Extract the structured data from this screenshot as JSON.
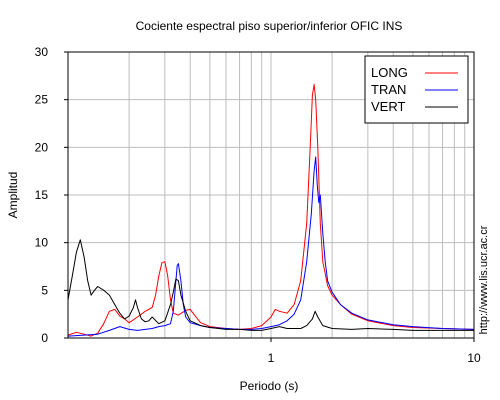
{
  "chart_data": {
    "type": "line",
    "title": "Cociente espectral piso superior/inferior  OFIC INS",
    "xlabel": "Periodo (s)",
    "ylabel": "Amplitud",
    "xscale": "log",
    "xlim": [
      0.1,
      10
    ],
    "ylim": [
      0,
      30
    ],
    "xticks": [
      {
        "value": 1,
        "label": "1"
      },
      {
        "value": 10,
        "label": "10"
      }
    ],
    "yticks": [
      0,
      5,
      10,
      15,
      20,
      25,
      30
    ],
    "grid": true,
    "legend": "top-right",
    "side_text": "http://www.lis.ucr.ac.cr",
    "series": [
      {
        "name": "LONG",
        "color": "#ff0000",
        "points": [
          [
            0.1,
            0.3
          ],
          [
            0.11,
            0.6
          ],
          [
            0.12,
            0.4
          ],
          [
            0.13,
            0.2
          ],
          [
            0.14,
            0.5
          ],
          [
            0.15,
            1.5
          ],
          [
            0.16,
            2.8
          ],
          [
            0.17,
            3.0
          ],
          [
            0.18,
            2.3
          ],
          [
            0.19,
            2.0
          ],
          [
            0.2,
            1.6
          ],
          [
            0.22,
            2.2
          ],
          [
            0.24,
            2.8
          ],
          [
            0.26,
            3.2
          ],
          [
            0.27,
            4.5
          ],
          [
            0.28,
            6.5
          ],
          [
            0.29,
            7.9
          ],
          [
            0.3,
            8.0
          ],
          [
            0.31,
            6.5
          ],
          [
            0.32,
            4.0
          ],
          [
            0.33,
            2.6
          ],
          [
            0.35,
            2.4
          ],
          [
            0.38,
            2.9
          ],
          [
            0.4,
            3.0
          ],
          [
            0.42,
            2.4
          ],
          [
            0.45,
            1.6
          ],
          [
            0.5,
            1.2
          ],
          [
            0.6,
            1.0
          ],
          [
            0.7,
            0.9
          ],
          [
            0.8,
            1.0
          ],
          [
            0.9,
            1.3
          ],
          [
            1.0,
            2.2
          ],
          [
            1.05,
            3.0
          ],
          [
            1.1,
            2.8
          ],
          [
            1.2,
            2.6
          ],
          [
            1.3,
            3.5
          ],
          [
            1.4,
            6.0
          ],
          [
            1.5,
            12.0
          ],
          [
            1.56,
            20.0
          ],
          [
            1.6,
            25.5
          ],
          [
            1.63,
            26.6
          ],
          [
            1.66,
            25.0
          ],
          [
            1.7,
            20.0
          ],
          [
            1.75,
            12.0
          ],
          [
            1.8,
            8.0
          ],
          [
            1.9,
            5.5
          ],
          [
            2.0,
            4.5
          ],
          [
            2.2,
            3.5
          ],
          [
            2.5,
            2.5
          ],
          [
            3.0,
            1.8
          ],
          [
            4.0,
            1.3
          ],
          [
            5.0,
            1.1
          ],
          [
            7.0,
            1.0
          ],
          [
            10.0,
            0.9
          ]
        ]
      },
      {
        "name": "TRAN",
        "color": "#0000ff",
        "points": [
          [
            0.1,
            0.2
          ],
          [
            0.12,
            0.3
          ],
          [
            0.14,
            0.4
          ],
          [
            0.16,
            0.8
          ],
          [
            0.18,
            1.2
          ],
          [
            0.2,
            0.9
          ],
          [
            0.22,
            0.8
          ],
          [
            0.24,
            0.9
          ],
          [
            0.26,
            1.0
          ],
          [
            0.28,
            1.2
          ],
          [
            0.3,
            1.3
          ],
          [
            0.32,
            1.5
          ],
          [
            0.33,
            2.8
          ],
          [
            0.34,
            6.0
          ],
          [
            0.345,
            7.6
          ],
          [
            0.35,
            7.8
          ],
          [
            0.36,
            6.0
          ],
          [
            0.37,
            3.5
          ],
          [
            0.38,
            2.2
          ],
          [
            0.4,
            1.6
          ],
          [
            0.45,
            1.3
          ],
          [
            0.5,
            1.1
          ],
          [
            0.6,
            1.0
          ],
          [
            0.7,
            0.9
          ],
          [
            0.8,
            0.9
          ],
          [
            0.9,
            1.0
          ],
          [
            1.0,
            1.2
          ],
          [
            1.1,
            1.4
          ],
          [
            1.2,
            1.8
          ],
          [
            1.3,
            2.5
          ],
          [
            1.4,
            4.0
          ],
          [
            1.5,
            8.0
          ],
          [
            1.58,
            13.0
          ],
          [
            1.63,
            17.5
          ],
          [
            1.66,
            19.0
          ],
          [
            1.69,
            16.0
          ],
          [
            1.72,
            14.2
          ],
          [
            1.75,
            15.0
          ],
          [
            1.8,
            11.0
          ],
          [
            1.85,
            8.0
          ],
          [
            1.9,
            6.0
          ],
          [
            2.0,
            4.8
          ],
          [
            2.2,
            3.5
          ],
          [
            2.5,
            2.6
          ],
          [
            3.0,
            1.9
          ],
          [
            4.0,
            1.4
          ],
          [
            5.0,
            1.2
          ],
          [
            7.0,
            1.0
          ],
          [
            10.0,
            0.9
          ]
        ]
      },
      {
        "name": "VERT",
        "color": "#000000",
        "points": [
          [
            0.1,
            4.0
          ],
          [
            0.105,
            6.5
          ],
          [
            0.11,
            9.0
          ],
          [
            0.115,
            10.3
          ],
          [
            0.12,
            8.5
          ],
          [
            0.125,
            6.0
          ],
          [
            0.13,
            4.5
          ],
          [
            0.135,
            5.0
          ],
          [
            0.14,
            5.4
          ],
          [
            0.15,
            5.0
          ],
          [
            0.16,
            4.5
          ],
          [
            0.17,
            3.5
          ],
          [
            0.18,
            2.6
          ],
          [
            0.19,
            2.0
          ],
          [
            0.2,
            2.3
          ],
          [
            0.21,
            3.2
          ],
          [
            0.215,
            4.0
          ],
          [
            0.22,
            3.2
          ],
          [
            0.23,
            2.0
          ],
          [
            0.24,
            1.7
          ],
          [
            0.25,
            1.8
          ],
          [
            0.26,
            2.2
          ],
          [
            0.28,
            1.5
          ],
          [
            0.3,
            1.8
          ],
          [
            0.32,
            3.5
          ],
          [
            0.33,
            4.8
          ],
          [
            0.34,
            6.2
          ],
          [
            0.35,
            6.0
          ],
          [
            0.36,
            4.5
          ],
          [
            0.38,
            2.8
          ],
          [
            0.4,
            1.8
          ],
          [
            0.45,
            1.3
          ],
          [
            0.5,
            1.1
          ],
          [
            0.6,
            0.9
          ],
          [
            0.7,
            0.9
          ],
          [
            0.8,
            0.8
          ],
          [
            0.9,
            0.8
          ],
          [
            1.0,
            1.0
          ],
          [
            1.1,
            1.2
          ],
          [
            1.2,
            1.0
          ],
          [
            1.4,
            1.0
          ],
          [
            1.5,
            1.3
          ],
          [
            1.6,
            2.0
          ],
          [
            1.65,
            2.8
          ],
          [
            1.7,
            2.2
          ],
          [
            1.8,
            1.3
          ],
          [
            2.0,
            1.0
          ],
          [
            2.5,
            0.9
          ],
          [
            3.0,
            1.0
          ],
          [
            4.0,
            0.9
          ],
          [
            5.0,
            0.8
          ],
          [
            7.0,
            0.8
          ],
          [
            10.0,
            0.8
          ]
        ]
      }
    ]
  }
}
